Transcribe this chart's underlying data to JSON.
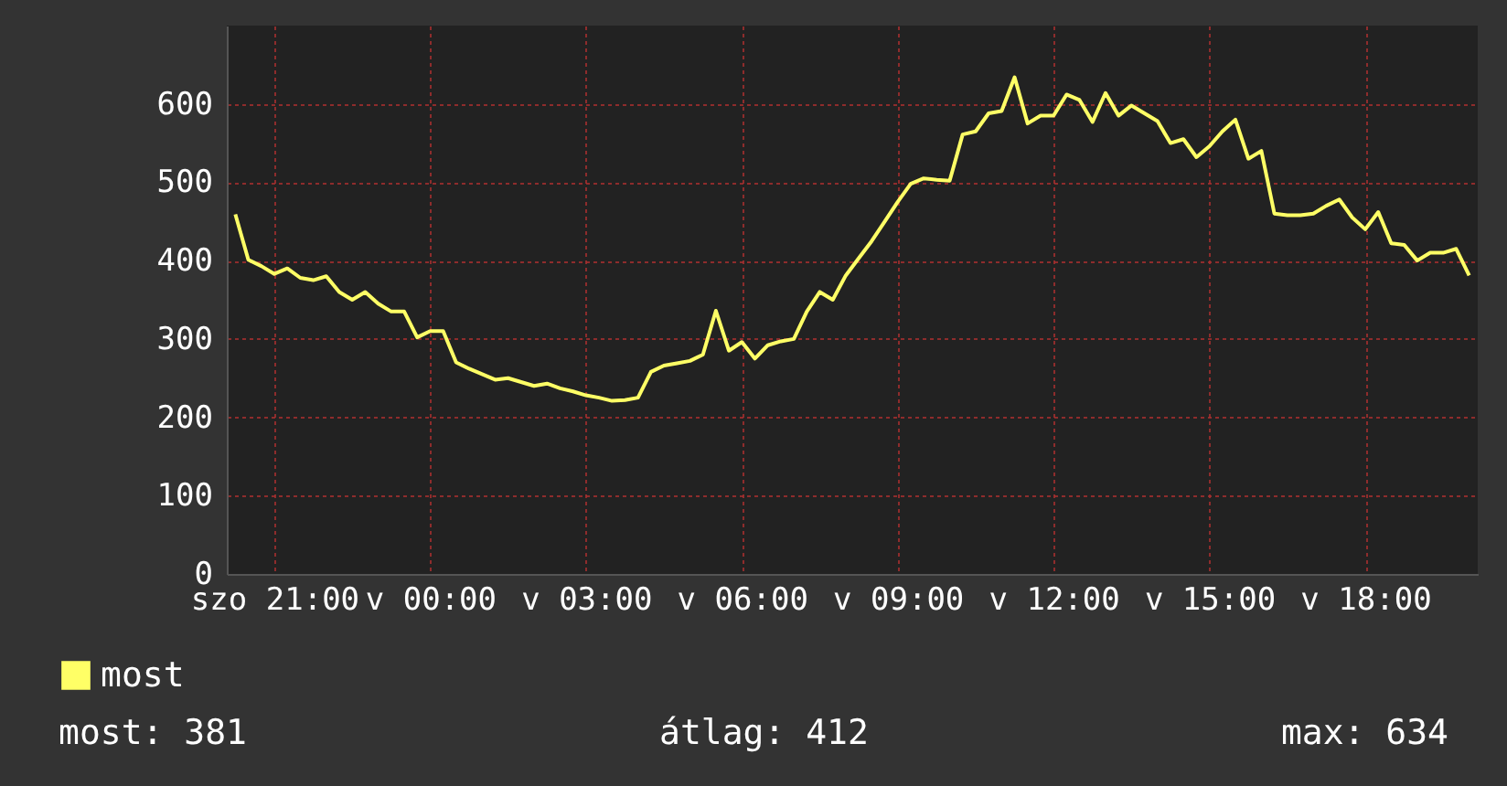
{
  "chart_data": {
    "type": "line",
    "categories": [
      null,
      null,
      null,
      "szo 21:00",
      null,
      null,
      null,
      null,
      null,
      null,
      null,
      null,
      null,
      null,
      null,
      "v 00:00",
      null,
      null,
      null,
      null,
      null,
      null,
      null,
      null,
      null,
      null,
      null,
      "v 03:00",
      null,
      null,
      null,
      null,
      null,
      null,
      null,
      null,
      null,
      null,
      null,
      "v 06:00",
      null,
      null,
      null,
      null,
      null,
      null,
      null,
      null,
      null,
      null,
      null,
      "v 09:00",
      null,
      null,
      null,
      null,
      null,
      null,
      null,
      null,
      null,
      null,
      null,
      "v 12:00",
      null,
      null,
      null,
      null,
      null,
      null,
      null,
      null,
      null,
      null,
      null,
      "v 15:00",
      null,
      null,
      null,
      null,
      null,
      null,
      null,
      null,
      null,
      null,
      null,
      "v 18:00",
      null,
      null,
      null,
      null,
      null,
      null,
      null,
      null
    ],
    "ylim": [
      0,
      700
    ],
    "yticks": [
      0,
      100,
      200,
      300,
      400,
      500,
      600
    ],
    "grid": true,
    "legend": "bottom left",
    "annotations": [
      "most: 381",
      "átlag: 412",
      "max: 634"
    ],
    "series": [
      {
        "name": "most",
        "color": "#ffff66",
        "values": [
          459,
          401,
          393,
          383,
          390,
          378,
          375,
          380,
          360,
          350,
          360,
          345,
          335,
          335,
          302,
          310,
          310,
          270,
          262,
          255,
          248,
          250,
          245,
          240,
          243,
          237,
          233,
          228,
          225,
          221,
          222,
          225,
          258,
          266,
          269,
          272,
          280,
          336,
          285,
          296,
          275,
          292,
          297,
          300,
          335,
          360,
          350,
          381,
          403,
          425,
          450,
          475,
          498,
          505,
          503,
          502,
          561,
          565,
          588,
          591,
          634,
          575,
          585,
          585,
          612,
          605,
          577,
          614,
          585,
          598,
          588,
          578,
          550,
          555,
          532,
          546,
          565,
          580,
          530,
          540,
          460,
          458,
          458,
          460,
          470,
          478,
          455,
          440,
          462,
          422,
          420,
          400,
          410,
          410,
          415,
          381
        ]
      }
    ]
  }
}
